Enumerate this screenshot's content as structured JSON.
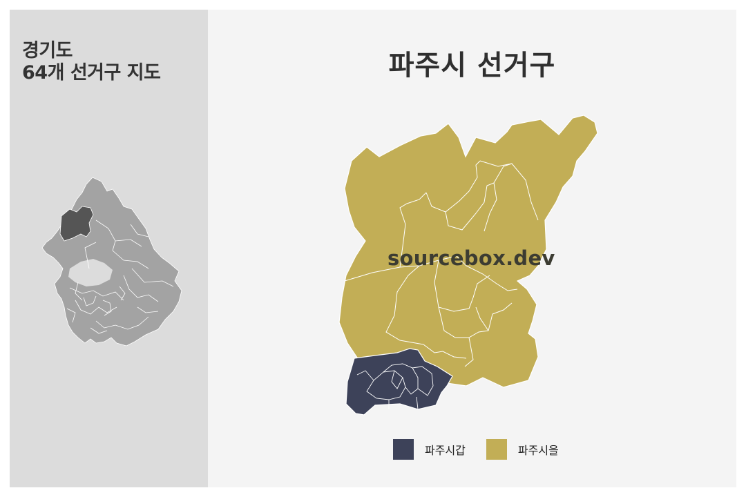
{
  "sidebar": {
    "title_line1": "경기도",
    "title_line2": "64개 선거구 지도"
  },
  "main": {
    "title": "파주시 선거구",
    "watermark": "sourcebox.dev"
  },
  "legend": {
    "items": [
      {
        "label": "파주시갑",
        "color": "#3d4259"
      },
      {
        "label": "파주시을",
        "color": "#c2ae56"
      }
    ]
  },
  "colors": {
    "left_panel_bg": "#dcdcdc",
    "right_panel_bg": "#f4f4f4",
    "province_gray": "#a3a3a3",
    "highlight_dark": "#555555",
    "gap_district": "#3d4259",
    "eul_district": "#c2ae56"
  }
}
